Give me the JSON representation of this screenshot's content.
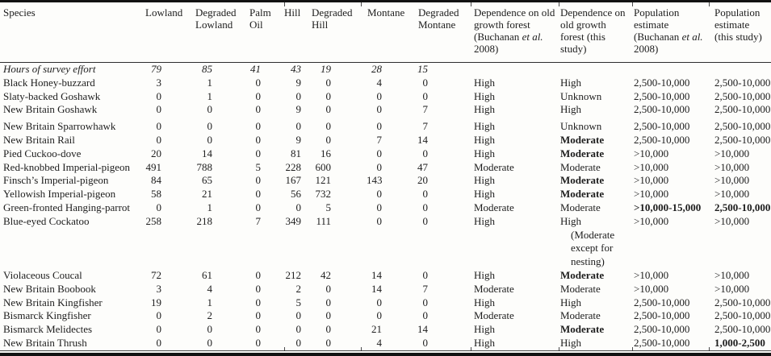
{
  "colors": {
    "ink": "#1d1d1d",
    "rule": "#121212",
    "background": "#fdfdfb"
  },
  "table": {
    "columns": [
      {
        "key": "species",
        "label": "Species"
      },
      {
        "key": "lowland",
        "label": "Lowland"
      },
      {
        "key": "degraded-lowland",
        "label": "Degraded Lowland"
      },
      {
        "key": "palm-oil",
        "label": "Palm Oil"
      },
      {
        "key": "hill",
        "label": "Hill"
      },
      {
        "key": "degraded-hill",
        "label": "Degraded Hill"
      },
      {
        "key": "montane",
        "label": "Montane"
      },
      {
        "key": "degraded-montane",
        "label": "Degraded Montane"
      },
      {
        "key": "dep-old-growth-buchanan",
        "label": "Dependence on old growth forest (Buchanan et al. 2008)"
      },
      {
        "key": "dep-old-growth-this-study",
        "label": "Dependence on old growth forest (this study)"
      },
      {
        "key": "pop-estimate-buchanan",
        "label": "Population estimate (Buchanan et al. 2008)"
      },
      {
        "key": "pop-estimate-this-study",
        "label": "Population estimate (this study)"
      }
    ],
    "effort_row": {
      "label": "Hours of survey effort",
      "counts": [
        "79",
        "85",
        "41",
        "43",
        "19",
        "28",
        "15"
      ]
    },
    "rows": [
      {
        "species": "Black Honey-buzzard",
        "counts": [
          "3",
          "1",
          "0",
          "9",
          "0",
          "4",
          "0"
        ],
        "dep_buchanan": "High",
        "dep_this": "High",
        "pop_buchanan": "2,500-10,000",
        "pop_this": "2,500-10,000",
        "bold": []
      },
      {
        "species": "Slaty-backed Goshawk",
        "counts": [
          "0",
          "1",
          "0",
          "0",
          "0",
          "0",
          "0"
        ],
        "dep_buchanan": "High",
        "dep_this": "Unknown",
        "pop_buchanan": "2,500-10,000",
        "pop_this": "2,500-10,000",
        "bold": []
      },
      {
        "species": "New Britain Goshawk",
        "counts": [
          "0",
          "0",
          "0",
          "9",
          "0",
          "0",
          "7"
        ],
        "dep_buchanan": "High",
        "dep_this": "High",
        "pop_buchanan": "2,500-10,000",
        "pop_this": "2,500-10,000",
        "bold": []
      },
      {
        "species": "New Britain Sparrowhawk",
        "counts": [
          "0",
          "0",
          "0",
          "0",
          "0",
          "0",
          "7"
        ],
        "dep_buchanan": "High",
        "dep_this": "Unknown",
        "pop_buchanan": "2,500-10,000",
        "pop_this": "2,500-10,000",
        "bold": [],
        "gap_above": true
      },
      {
        "species": "New Britain Rail",
        "counts": [
          "0",
          "0",
          "0",
          "9",
          "0",
          "7",
          "14"
        ],
        "dep_buchanan": "High",
        "dep_this": "Moderate",
        "pop_buchanan": "2,500-10,000",
        "pop_this": "2,500-10,000",
        "bold": [
          "dep_this"
        ]
      },
      {
        "species": "Pied Cuckoo-dove",
        "counts": [
          "20",
          "14",
          "0",
          "81",
          "16",
          "0",
          "0"
        ],
        "dep_buchanan": "High",
        "dep_this": "Moderate",
        "pop_buchanan": ">10,000",
        "pop_this": ">10,000",
        "bold": [
          "dep_this"
        ]
      },
      {
        "species": "Red-knobbed Imperial-pigeon",
        "counts": [
          "491",
          "788",
          "5",
          "228",
          "600",
          "0",
          "47"
        ],
        "dep_buchanan": "Moderate",
        "dep_this": "Moderate",
        "pop_buchanan": ">10,000",
        "pop_this": ">10,000",
        "bold": []
      },
      {
        "species": "Finsch’s Imperial-pigeon",
        "counts": [
          "84",
          "65",
          "0",
          "167",
          "121",
          "143",
          "20"
        ],
        "dep_buchanan": "High",
        "dep_this": "Moderate",
        "pop_buchanan": ">10,000",
        "pop_this": ">10,000",
        "bold": [
          "dep_this"
        ]
      },
      {
        "species": "Yellowish Imperial-pigeon",
        "counts": [
          "58",
          "21",
          "0",
          "56",
          "732",
          "0",
          "0"
        ],
        "dep_buchanan": "High",
        "dep_this": "Moderate",
        "pop_buchanan": ">10,000",
        "pop_this": ">10,000",
        "bold": [
          "dep_this"
        ]
      },
      {
        "species": "Green-fronted Hanging-parrot",
        "counts": [
          "0",
          "1",
          "0",
          "0",
          "5",
          "0",
          "0"
        ],
        "dep_buchanan": "Moderate",
        "dep_this": "Moderate",
        "pop_buchanan": ">10,000-15,000",
        "pop_this": "2,500-10,000",
        "bold": [
          "pop_buchanan",
          "pop_this"
        ]
      },
      {
        "species": "Blue-eyed Cockatoo",
        "counts": [
          "258",
          "218",
          "7",
          "349",
          "111",
          "0",
          "0"
        ],
        "dep_buchanan": "High",
        "dep_this": "High",
        "dep_this_note": "(Moderate except for nesting)",
        "pop_buchanan": ">10,000",
        "pop_this": ">10,000",
        "bold": []
      },
      {
        "species": "Violaceous Coucal",
        "counts": [
          "72",
          "61",
          "0",
          "212",
          "42",
          "14",
          "0"
        ],
        "dep_buchanan": "High",
        "dep_this": "Moderate",
        "pop_buchanan": ">10,000",
        "pop_this": ">10,000",
        "bold": [
          "dep_this"
        ]
      },
      {
        "species": "New Britain Boobook",
        "counts": [
          "3",
          "4",
          "0",
          "2",
          "0",
          "14",
          "7"
        ],
        "dep_buchanan": "Moderate",
        "dep_this": "Moderate",
        "pop_buchanan": ">10,000",
        "pop_this": ">10,000",
        "bold": []
      },
      {
        "species": "New Britain Kingfisher",
        "counts": [
          "19",
          "1",
          "0",
          "5",
          "0",
          "0",
          "0"
        ],
        "dep_buchanan": "High",
        "dep_this": "High",
        "pop_buchanan": "2,500-10,000",
        "pop_this": "2,500-10,000",
        "bold": []
      },
      {
        "species": "Bismarck Kingfisher",
        "counts": [
          "0",
          "2",
          "0",
          "0",
          "0",
          "0",
          "0"
        ],
        "dep_buchanan": "Moderate",
        "dep_this": "Moderate",
        "pop_buchanan": "2,500-10,000",
        "pop_this": "2,500-10,000",
        "bold": []
      },
      {
        "species": "Bismarck Melidectes",
        "counts": [
          "0",
          "0",
          "0",
          "0",
          "0",
          "21",
          "14"
        ],
        "dep_buchanan": "High",
        "dep_this": "Moderate",
        "pop_buchanan": "2,500-10,000",
        "pop_this": "2,500-10,000",
        "bold": [
          "dep_this"
        ]
      },
      {
        "species": "New Britain Thrush",
        "counts": [
          "0",
          "0",
          "0",
          "0",
          "0",
          "4",
          "0"
        ],
        "dep_buchanan": "High",
        "dep_this": "High",
        "pop_buchanan": "2,500-10,000",
        "pop_this": "1,000-2,500",
        "bold": [
          "pop_this"
        ]
      }
    ]
  }
}
